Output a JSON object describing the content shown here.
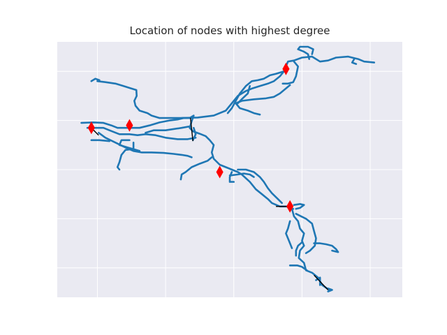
{
  "chart_data": {
    "type": "network",
    "title": "Location of nodes with highest degree",
    "xlabel": "",
    "ylabel": "",
    "grid": true,
    "axes_ticks_visible": false,
    "xlim": [
      -1.0,
      7.6
    ],
    "ylim": [
      -0.6,
      4.6
    ],
    "x_gridlines": [
      0,
      1.7,
      3.4,
      5.1,
      6.8
    ],
    "y_gridlines": [
      0,
      1,
      2,
      3,
      4
    ],
    "colors": {
      "background": "#eaeaf2",
      "grid": "#ffffff",
      "edge": "#1f77b4",
      "connector": "#000000",
      "marker": "#ff0000"
    },
    "marker_shape": "thin-diamond",
    "edge_paths": [
      [
        [
          0.0,
          3.8
        ],
        [
          0.2,
          3.78
        ],
        [
          0.45,
          3.75
        ],
        [
          0.65,
          3.7
        ],
        [
          0.85,
          3.65
        ],
        [
          0.97,
          3.62
        ],
        [
          0.98,
          3.5
        ],
        [
          0.92,
          3.4
        ],
        [
          0.95,
          3.3
        ],
        [
          1.05,
          3.2
        ],
        [
          1.25,
          3.15
        ],
        [
          1.35,
          3.1
        ],
        [
          1.55,
          3.05
        ],
        [
          2.0,
          3.05
        ],
        [
          2.3,
          3.05
        ],
        [
          2.4,
          3.1
        ],
        [
          2.35,
          2.98
        ],
        [
          2.3,
          2.85
        ],
        [
          2.38,
          2.78
        ],
        [
          2.55,
          2.73
        ],
        [
          2.7,
          2.68
        ],
        [
          2.8,
          2.6
        ],
        [
          2.9,
          2.5
        ],
        [
          2.85,
          2.35
        ],
        [
          2.9,
          2.22
        ],
        [
          3.05,
          2.1
        ],
        [
          3.2,
          2.05
        ],
        [
          3.35,
          2.0
        ],
        [
          3.5,
          1.95
        ],
        [
          3.6,
          1.9
        ],
        [
          3.8,
          1.75
        ],
        [
          3.95,
          1.6
        ],
        [
          4.1,
          1.5
        ],
        [
          4.25,
          1.4
        ],
        [
          4.35,
          1.32
        ],
        [
          4.55,
          1.25
        ],
        [
          4.72,
          1.25
        ],
        [
          4.85,
          1.2
        ],
        [
          4.9,
          1.05
        ],
        [
          5.0,
          0.95
        ],
        [
          5.05,
          0.8
        ],
        [
          5.15,
          0.7
        ],
        [
          5.1,
          0.55
        ],
        [
          5.15,
          0.45
        ],
        [
          5.05,
          0.35
        ],
        [
          5.02,
          0.2
        ],
        [
          5.15,
          0.1
        ],
        [
          5.2,
          -0.05
        ],
        [
          5.35,
          -0.1
        ],
        [
          5.5,
          -0.2
        ],
        [
          5.6,
          -0.35
        ],
        [
          5.78,
          -0.45
        ]
      ],
      [
        [
          2.1,
          3.05
        ],
        [
          2.5,
          3.06
        ],
        [
          2.9,
          3.1
        ],
        [
          3.2,
          3.2
        ],
        [
          3.35,
          3.35
        ],
        [
          3.5,
          3.5
        ],
        [
          3.7,
          3.6
        ],
        [
          3.85,
          3.65
        ],
        [
          4.05,
          3.7
        ],
        [
          4.25,
          3.75
        ],
        [
          4.4,
          3.8
        ],
        [
          4.55,
          3.9
        ],
        [
          4.65,
          4.0
        ],
        [
          4.7,
          4.1
        ],
        [
          4.75,
          4.2
        ],
        [
          4.9,
          4.22
        ],
        [
          5.1,
          4.28
        ],
        [
          5.35,
          4.3
        ],
        [
          5.55,
          4.2
        ],
        [
          5.75,
          4.22
        ],
        [
          5.95,
          4.28
        ],
        [
          6.25,
          4.3
        ],
        [
          6.5,
          4.25
        ],
        [
          6.65,
          4.2
        ],
        [
          6.9,
          4.18
        ]
      ],
      [
        [
          5.28,
          4.25
        ],
        [
          5.25,
          4.35
        ],
        [
          5.15,
          4.4
        ],
        [
          5.0,
          4.45
        ],
        [
          5.05,
          4.5
        ],
        [
          5.25,
          4.5
        ],
        [
          5.38,
          4.45
        ],
        [
          5.35,
          4.35
        ]
      ],
      [
        [
          6.4,
          4.25
        ],
        [
          6.35,
          4.18
        ],
        [
          6.45,
          4.15
        ]
      ],
      [
        [
          4.9,
          4.2
        ],
        [
          5.0,
          4.1
        ],
        [
          4.95,
          3.9
        ],
        [
          4.88,
          3.78
        ],
        [
          4.75,
          3.75
        ],
        [
          4.62,
          3.75
        ]
      ],
      [
        [
          4.65,
          4.0
        ],
        [
          4.45,
          3.95
        ],
        [
          4.3,
          3.92
        ],
        [
          4.15,
          3.85
        ],
        [
          4.0,
          3.82
        ],
        [
          3.85,
          3.8
        ],
        [
          3.7,
          3.7
        ],
        [
          3.55,
          3.55
        ],
        [
          3.45,
          3.4
        ],
        [
          3.35,
          3.25
        ],
        [
          3.25,
          3.15
        ]
      ],
      [
        [
          4.8,
          3.72
        ],
        [
          4.55,
          3.55
        ],
        [
          4.4,
          3.48
        ],
        [
          4.2,
          3.45
        ],
        [
          3.9,
          3.43
        ],
        [
          3.6,
          3.4
        ],
        [
          3.45,
          3.35
        ],
        [
          3.55,
          3.25
        ],
        [
          3.75,
          3.2
        ],
        [
          3.9,
          3.15
        ],
        [
          4.05,
          3.12
        ]
      ],
      [
        [
          3.8,
          3.7
        ],
        [
          3.75,
          3.55
        ],
        [
          3.62,
          3.45
        ],
        [
          3.5,
          3.35
        ]
      ],
      [
        [
          -0.15,
          3.8
        ],
        [
          -0.05,
          3.85
        ],
        [
          0.05,
          3.82
        ]
      ],
      [
        [
          -0.4,
          2.95
        ],
        [
          -0.1,
          2.96
        ],
        [
          0.15,
          2.95
        ],
        [
          0.35,
          2.9
        ],
        [
          0.5,
          2.85
        ],
        [
          0.8,
          2.85
        ],
        [
          1.05,
          2.85
        ],
        [
          1.3,
          2.9
        ],
        [
          1.55,
          2.96
        ],
        [
          1.8,
          3.0
        ],
        [
          2.0,
          3.02
        ],
        [
          2.15,
          3.05
        ]
      ],
      [
        [
          -0.25,
          2.85
        ],
        [
          -0.05,
          2.85
        ],
        [
          0.15,
          2.85
        ],
        [
          0.3,
          2.8
        ],
        [
          0.55,
          2.72
        ],
        [
          0.8,
          2.72
        ],
        [
          1.0,
          2.7
        ],
        [
          1.2,
          2.72
        ],
        [
          1.45,
          2.7
        ],
        [
          1.7,
          2.65
        ],
        [
          2.0,
          2.62
        ],
        [
          2.25,
          2.62
        ],
        [
          2.45,
          2.65
        ]
      ],
      [
        [
          0.03,
          2.75
        ],
        [
          0.2,
          2.65
        ],
        [
          0.45,
          2.55
        ],
        [
          0.7,
          2.45
        ],
        [
          0.9,
          2.38
        ],
        [
          1.1,
          2.35
        ],
        [
          1.35,
          2.35
        ],
        [
          1.65,
          2.34
        ],
        [
          1.9,
          2.32
        ],
        [
          2.1,
          2.3
        ],
        [
          2.25,
          2.28
        ],
        [
          2.35,
          2.25
        ]
      ],
      [
        [
          -0.15,
          2.6
        ],
        [
          0.05,
          2.6
        ],
        [
          0.3,
          2.58
        ]
      ],
      [
        [
          0.9,
          2.55
        ],
        [
          0.9,
          2.42
        ],
        [
          0.7,
          2.4
        ],
        [
          0.6,
          2.3
        ],
        [
          0.55,
          2.15
        ],
        [
          0.5,
          2.05
        ],
        [
          0.55,
          2.0
        ]
      ],
      [
        [
          0.8,
          2.6
        ],
        [
          0.6,
          2.6
        ],
        [
          0.55,
          2.5
        ],
        [
          0.75,
          2.45
        ],
        [
          1.05,
          2.38
        ]
      ],
      [
        [
          2.3,
          2.88
        ],
        [
          2.1,
          2.85
        ],
        [
          1.7,
          2.8
        ],
        [
          1.4,
          2.8
        ],
        [
          1.2,
          2.75
        ]
      ],
      [
        [
          2.4,
          2.85
        ],
        [
          2.45,
          2.72
        ],
        [
          2.38,
          2.6
        ]
      ],
      [
        [
          2.85,
          2.25
        ],
        [
          2.75,
          2.18
        ],
        [
          2.55,
          2.12
        ],
        [
          2.35,
          2.05
        ],
        [
          2.2,
          1.95
        ],
        [
          2.1,
          1.9
        ],
        [
          2.08,
          1.8
        ]
      ],
      [
        [
          3.35,
          1.95
        ],
        [
          3.3,
          1.85
        ],
        [
          3.3,
          1.75
        ],
        [
          3.4,
          1.75
        ]
      ],
      [
        [
          3.5,
          2.0
        ],
        [
          3.7,
          2.0
        ],
        [
          3.9,
          1.95
        ],
        [
          4.05,
          1.85
        ],
        [
          4.15,
          1.75
        ],
        [
          4.25,
          1.62
        ],
        [
          4.35,
          1.52
        ],
        [
          4.5,
          1.4
        ],
        [
          4.6,
          1.32
        ]
      ],
      [
        [
          3.3,
          1.88
        ],
        [
          3.5,
          1.9
        ],
        [
          3.65,
          1.92
        ],
        [
          3.8,
          1.9
        ],
        [
          3.9,
          1.85
        ]
      ],
      [
        [
          4.95,
          1.1
        ],
        [
          5.2,
          1.0
        ],
        [
          5.35,
          0.9
        ],
        [
          5.4,
          0.75
        ],
        [
          5.45,
          0.6
        ],
        [
          5.42,
          0.45
        ],
        [
          5.3,
          0.35
        ],
        [
          5.2,
          0.3
        ]
      ],
      [
        [
          4.75,
          1.25
        ],
        [
          4.88,
          1.2
        ]
      ],
      [
        [
          4.9,
          1.28
        ],
        [
          5.05,
          1.3
        ],
        [
          5.15,
          1.28
        ],
        [
          5.05,
          1.22
        ],
        [
          4.95,
          1.2
        ]
      ],
      [
        [
          5.1,
          0.52
        ],
        [
          5.0,
          0.45
        ],
        [
          4.95,
          0.35
        ],
        [
          4.95,
          0.25
        ]
      ],
      [
        [
          5.4,
          0.5
        ],
        [
          5.55,
          0.5
        ],
        [
          5.7,
          0.48
        ],
        [
          5.85,
          0.45
        ],
        [
          5.95,
          0.38
        ],
        [
          6.0,
          0.32
        ],
        [
          5.85,
          0.35
        ]
      ],
      [
        [
          4.8,
          0.95
        ],
        [
          4.75,
          0.8
        ],
        [
          4.7,
          0.7
        ],
        [
          4.75,
          0.6
        ],
        [
          4.8,
          0.5
        ],
        [
          4.85,
          0.4
        ]
      ],
      [
        [
          4.8,
          0.05
        ],
        [
          4.98,
          0.05
        ],
        [
          5.1,
          0.02
        ],
        [
          5.22,
          -0.05
        ]
      ],
      [
        [
          5.45,
          -0.25
        ],
        [
          5.55,
          -0.2
        ],
        [
          5.55,
          -0.35
        ]
      ],
      [
        [
          5.75,
          -0.48
        ],
        [
          5.85,
          -0.45
        ],
        [
          5.75,
          -0.42
        ]
      ]
    ],
    "connector_paths": [
      [
        [
          -0.15,
          2.85
        ],
        [
          0.03,
          2.7
        ]
      ],
      [
        [
          2.32,
          3.05
        ],
        [
          2.38,
          2.58
        ]
      ],
      [
        [
          4.45,
          1.25
        ],
        [
          4.72,
          1.25
        ]
      ],
      [
        [
          5.4,
          -0.15
        ],
        [
          5.75,
          -0.45
        ]
      ]
    ],
    "highlight_nodes": [
      {
        "x": -0.15,
        "y": 2.85
      },
      {
        "x": 0.8,
        "y": 2.9
      },
      {
        "x": 4.7,
        "y": 4.05
      },
      {
        "x": 3.05,
        "y": 1.95
      },
      {
        "x": 4.8,
        "y": 1.25
      }
    ]
  }
}
